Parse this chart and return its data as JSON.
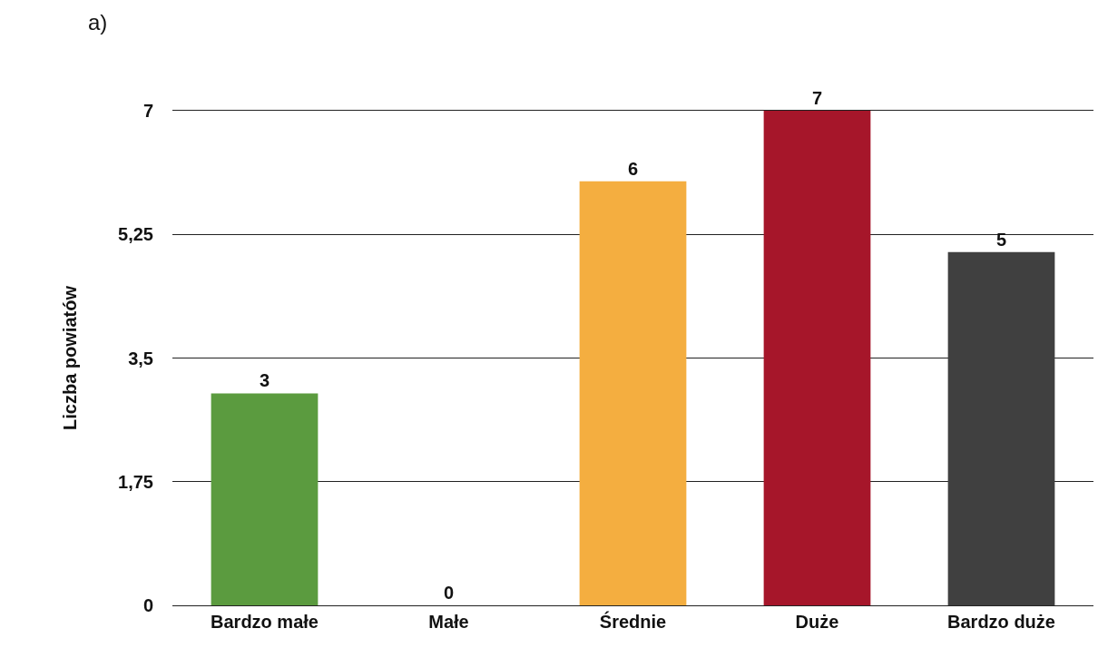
{
  "chart_data": {
    "type": "bar",
    "ylabel": "Liczba powiatów",
    "annotations": [
      "a)"
    ],
    "categories": [
      "Bardzo małe",
      "Małe",
      "Średnie",
      "Duże",
      "Bardzo duże"
    ],
    "values": [
      3,
      0,
      6,
      7,
      5
    ],
    "colors": [
      "#5b9b3f",
      "#5b9b3f",
      "#f4ae40",
      "#a6162a",
      "#404040"
    ],
    "ylim": [
      0,
      7
    ],
    "yticks": [
      0,
      {
        "value": 1.75,
        "label": "1,75"
      },
      {
        "value": 3.5,
        "label": "3,5"
      },
      {
        "value": 5.25,
        "label": "5,25"
      },
      7
    ],
    "grid": "y",
    "data_labels": true
  }
}
